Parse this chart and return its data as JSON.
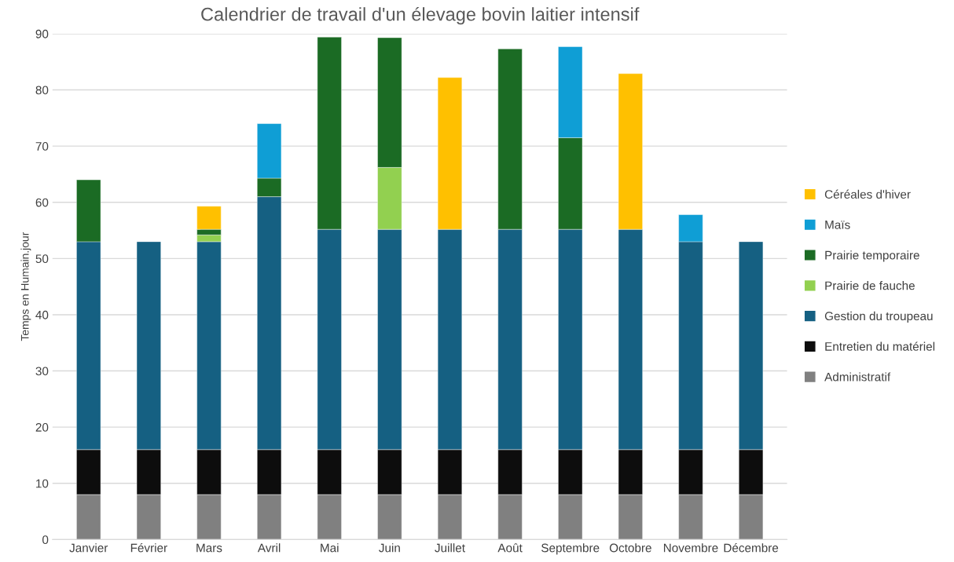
{
  "chart_data": {
    "type": "bar",
    "title": "Calendrier de travail d'un élevage bovin laitier intensif",
    "ylabel": "Temps en Humain.jour",
    "categories": [
      "Janvier",
      "Février",
      "Mars",
      "Avril",
      "Mai",
      "Juin",
      "Juillet",
      "Août",
      "Septembre",
      "Octobre",
      "Novembre",
      "Décembre"
    ],
    "stacked": true,
    "ylim": [
      0,
      90
    ],
    "yticks": [
      0,
      10,
      20,
      30,
      40,
      50,
      60,
      70,
      80,
      90
    ],
    "grid": "y",
    "legend": "right",
    "series": [
      {
        "name": "Administratif",
        "color": "#808080",
        "values": [
          8,
          8,
          8,
          8,
          8,
          8,
          8,
          8,
          8,
          8,
          8,
          8
        ]
      },
      {
        "name": "Entretien du matériel",
        "color": "#0d0d0d",
        "values": [
          8,
          8,
          8,
          8,
          8,
          8,
          8,
          8,
          8,
          8,
          8,
          8
        ]
      },
      {
        "name": "Gestion du troupeau",
        "color": "#156082",
        "values": [
          37,
          37,
          37,
          45,
          39.2,
          39.2,
          39.2,
          39.2,
          39.2,
          39.2,
          37,
          37
        ]
      },
      {
        "name": "Prairie de fauche",
        "color": "#92d050",
        "values": [
          null,
          null,
          1.2,
          null,
          null,
          11,
          null,
          null,
          null,
          null,
          null,
          null
        ]
      },
      {
        "name": "Prairie temporaire",
        "color": "#1b6b24",
        "values": [
          11,
          null,
          1,
          3.3,
          34.2,
          23.1,
          null,
          32.1,
          16.3,
          null,
          null,
          null
        ]
      },
      {
        "name": "Maïs",
        "color": "#0f9ed5",
        "values": [
          null,
          null,
          null,
          9.7,
          null,
          null,
          null,
          null,
          16.2,
          null,
          4.8,
          null
        ]
      },
      {
        "name": "Céréales d'hiver",
        "color": "#ffc000",
        "values": [
          null,
          null,
          4.1,
          null,
          null,
          null,
          27,
          null,
          null,
          27.7,
          null,
          null
        ]
      }
    ]
  }
}
